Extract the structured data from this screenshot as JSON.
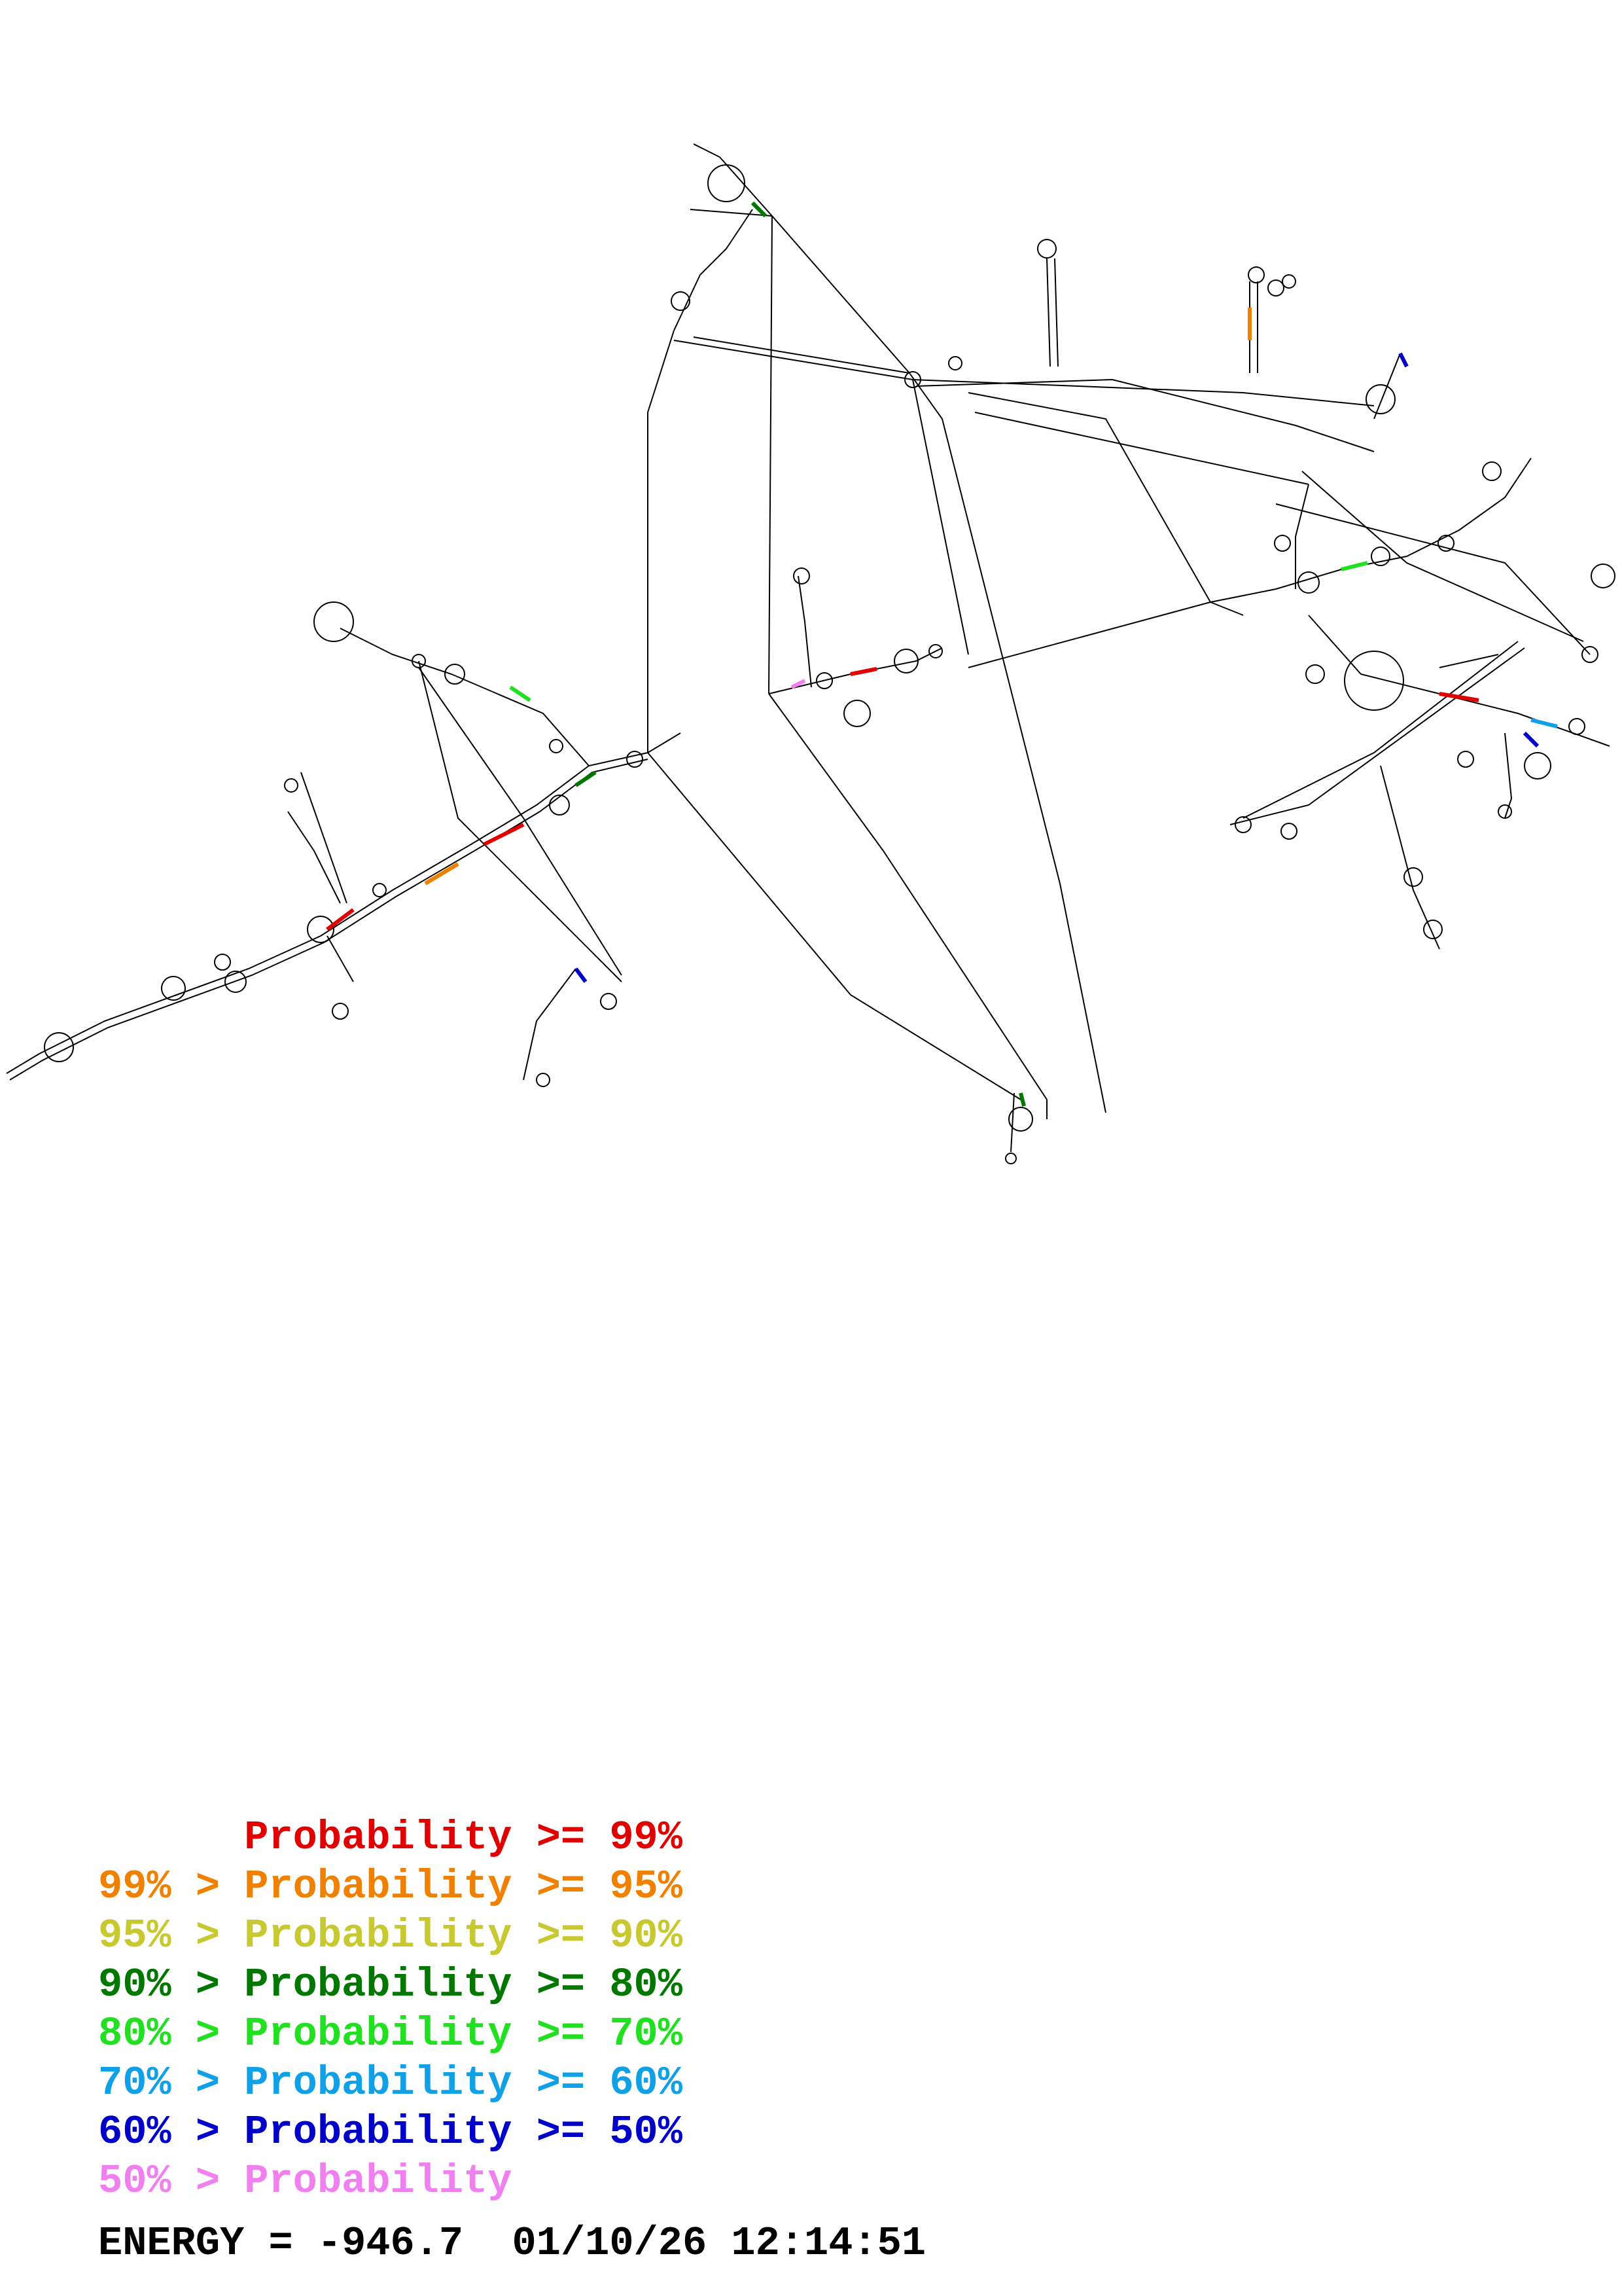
{
  "structure": {
    "stroke_color": "#000000"
  },
  "legend": {
    "rows": [
      {
        "text": "      Probability >= 99%",
        "color": "#e00000"
      },
      {
        "text": "99% > Probability >= 95%",
        "color": "#f08000"
      },
      {
        "text": "95% > Probability >= 90%",
        "color": "#c8c830"
      },
      {
        "text": "90% > Probability >= 80%",
        "color": "#007800"
      },
      {
        "text": "80% > Probability >= 70%",
        "color": "#20e020"
      },
      {
        "text": "70% > Probability >= 60%",
        "color": "#10a0e8"
      },
      {
        "text": "60% > Probability >= 50%",
        "color": "#0000c8"
      },
      {
        "text": "50% > Probability",
        "color": "#f080f0"
      }
    ]
  },
  "footer": {
    "energy_label": "ENERGY = ",
    "energy_value": "-946.7",
    "timestamp": "01/10/26 12:14:51"
  }
}
